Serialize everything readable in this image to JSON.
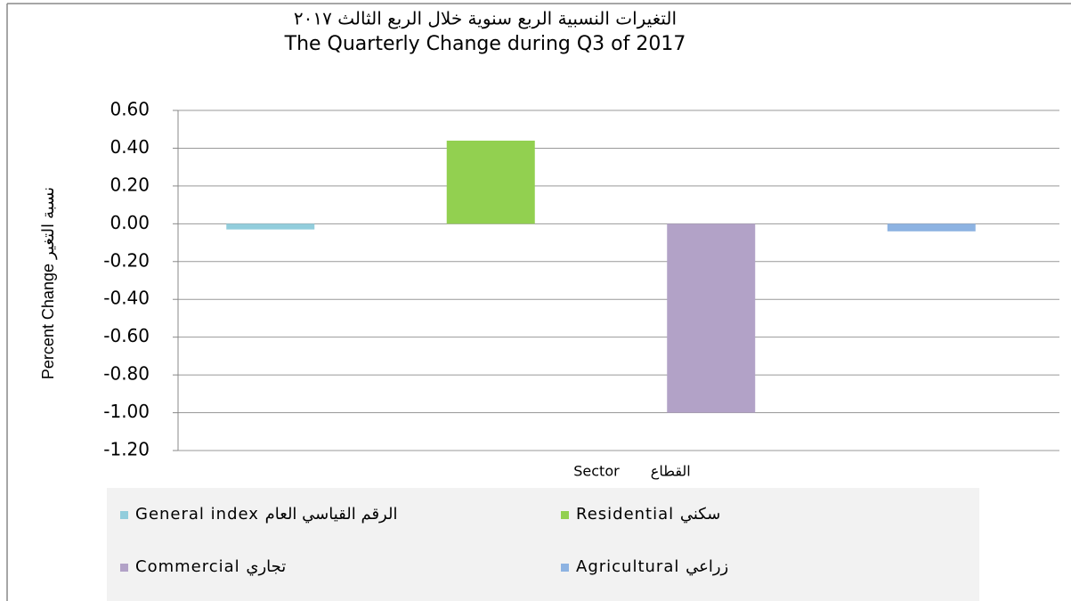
{
  "chart_data": {
    "type": "bar",
    "title": "التغيرات النسبية الربع سنوية خلال الربع الثالث ٢٠١٧",
    "subtitle": "The Quarterly Change during Q3 of 2017",
    "x_label": "Sector القطاع",
    "y_label": "Percent Change نسبة التغير",
    "categories": [
      null
    ],
    "series": [
      {
        "name": "General index الرقم القياسي العام",
        "color": "#92cddc",
        "values": [
          -0.03
        ]
      },
      {
        "name": "Residential سكني",
        "color": "#92d050",
        "values": [
          0.44
        ]
      },
      {
        "name": "Commercial تجاري",
        "color": "#b2a2c7",
        "values": [
          -1.0
        ]
      },
      {
        "name": "Agricultural زراعي",
        "color": "#8db3e2",
        "values": [
          -0.04
        ]
      }
    ],
    "ylim": [
      -1.2,
      0.6
    ],
    "yticks": [
      {
        "value": -1.2,
        "label": "-1.20"
      },
      {
        "value": -1.0,
        "label": "-1.00"
      },
      {
        "value": -0.8,
        "label": "-0.80"
      },
      {
        "value": -0.6,
        "label": "-0.60"
      },
      {
        "value": -0.4,
        "label": "-0.40"
      },
      {
        "value": -0.2,
        "label": "-0.20"
      },
      {
        "value": 0,
        "label": "0.00"
      },
      {
        "value": 0.2,
        "label": "0.20"
      },
      {
        "value": 0.4,
        "label": "0.40"
      },
      {
        "value": 0.6,
        "label": "0.60"
      }
    ],
    "grid": true,
    "legend": "bottom"
  }
}
